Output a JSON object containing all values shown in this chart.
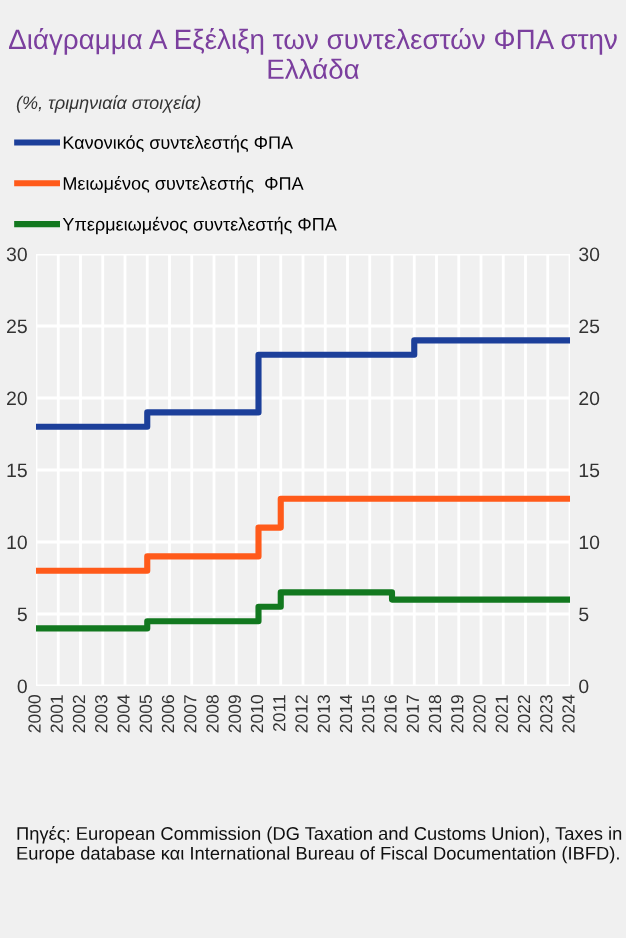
{
  "chart_data": {
    "type": "step",
    "title": "Διάγραμμα Α Εξέλιξη των συντελεστών ΦΠΑ στην Ελλάδα",
    "subtitle": "(%, τριμηνιαία στοιχεία)",
    "series": [
      {
        "name": "Κανονικός συντελεστής ΦΠΑ",
        "color": "#1c3f9a",
        "x": [
          2000,
          2005,
          2010,
          2017,
          2024
        ],
        "values": [
          18,
          19,
          23,
          24,
          24
        ]
      },
      {
        "name": "Μειωμένος συντελεστής  ΦΠΑ",
        "color": "#ff5a1a",
        "x": [
          2000,
          2005,
          2010,
          2011,
          2024
        ],
        "values": [
          8,
          9,
          11,
          13,
          13
        ]
      },
      {
        "name": "Υπερμειωμένος συντελεστής ΦΠΑ",
        "color": "#12781f",
        "x": [
          2000,
          2005,
          2010,
          2011,
          2016,
          2024
        ],
        "values": [
          4,
          4.5,
          5.5,
          6.5,
          6,
          6
        ]
      }
    ],
    "xlim": [
      2000,
      2024
    ],
    "xticks": [
      2000,
      2001,
      2002,
      2003,
      2004,
      2005,
      2006,
      2007,
      2008,
      2009,
      2010,
      2011,
      2012,
      2013,
      2014,
      2015,
      2016,
      2017,
      2018,
      2019,
      2020,
      2021,
      2022,
      2023,
      2024
    ],
    "ylim": [
      0,
      30
    ],
    "yticks": [
      0,
      5,
      10,
      15,
      20,
      25,
      30
    ],
    "y2lim": [
      0,
      30
    ],
    "y2ticks": [
      0,
      5,
      10,
      15,
      20,
      25,
      30
    ],
    "grid": true,
    "legend": "top left",
    "annotations": [
      "Πηγές: European Commission (DG Taxation and Customs Union), Taxes in Europe database και International Bureau of Fiscal Documentation (IBFD)."
    ]
  }
}
